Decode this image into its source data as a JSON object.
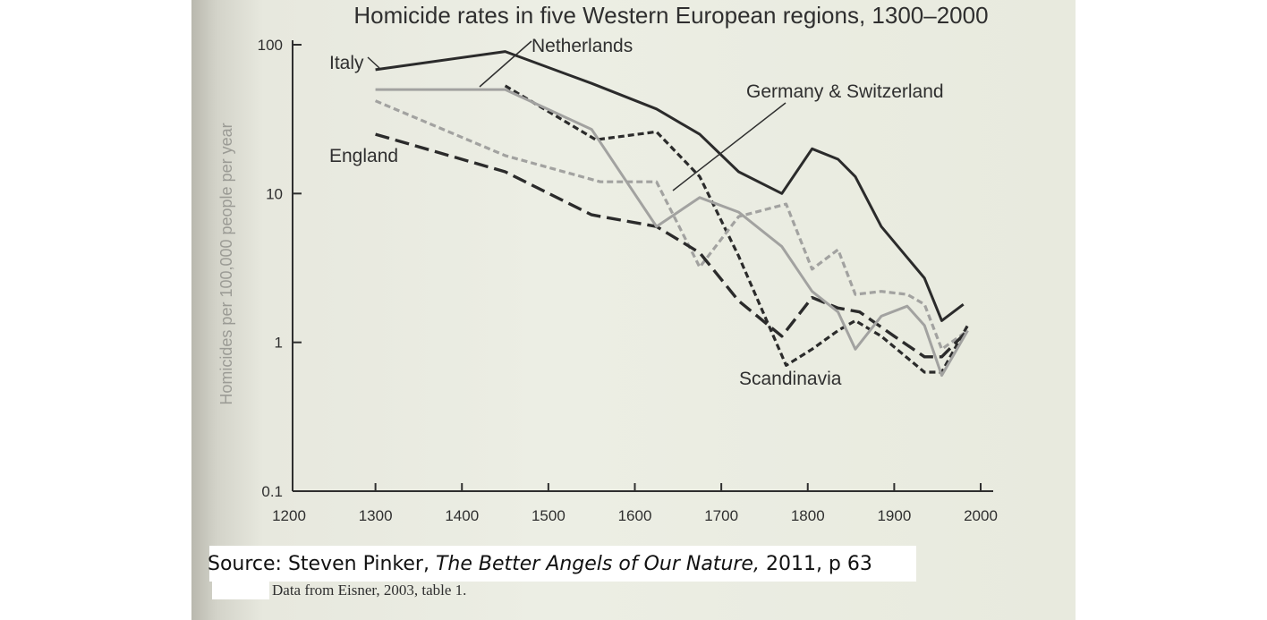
{
  "chart_data": {
    "type": "line",
    "title": "Homicide rates in five Western European regions, 1300–2000",
    "xlabel": "",
    "ylabel": "Homicides per 100,000 people per year",
    "yscale": "log",
    "xlim": [
      1200,
      2000
    ],
    "ylim": [
      0.1,
      100
    ],
    "xticks": [
      "1200",
      "1300",
      "1400",
      "1500",
      "1600",
      "1700",
      "1800",
      "1900",
      "2000"
    ],
    "yticks": [
      "0.1",
      "1",
      "10",
      "100"
    ],
    "grid": false,
    "series": [
      {
        "name": "Italy",
        "color": "#2b2b2b",
        "style": "solid",
        "x": [
          1300,
          1450,
          1550,
          1625,
          1675,
          1720,
          1770,
          1805,
          1835,
          1855,
          1885,
          1935,
          1955,
          1980
        ],
        "y": [
          68,
          90,
          55,
          37,
          25,
          14,
          10,
          20,
          17,
          13,
          6,
          2.7,
          1.4,
          1.8
        ]
      },
      {
        "name": "Netherlands",
        "color": "#2b2b2b",
        "style": "dashed",
        "x": [
          1450,
          1555,
          1625,
          1675,
          1720,
          1775,
          1805,
          1835,
          1855,
          1885,
          1935,
          1955,
          1985
        ],
        "y": [
          53,
          23,
          26,
          13,
          3.8,
          0.7,
          0.9,
          1.2,
          1.4,
          1.1,
          0.63,
          0.63,
          1.3
        ]
      },
      {
        "name": "Germany & Switzerland",
        "color": "#a2a2a0",
        "style": "dashed",
        "x": [
          1300,
          1450,
          1560,
          1625,
          1675,
          1720,
          1775,
          1805,
          1835,
          1855,
          1885,
          1915,
          1935,
          1955,
          1985
        ],
        "y": [
          42,
          18,
          12,
          12,
          3.2,
          7,
          8.5,
          3.1,
          4.2,
          2.1,
          2.2,
          2.1,
          1.8,
          0.9,
          1.2
        ]
      },
      {
        "name": "England",
        "color": "#2b2b2b",
        "style": "longdash",
        "x": [
          1300,
          1450,
          1550,
          1625,
          1675,
          1720,
          1770,
          1805,
          1835,
          1860,
          1900,
          1935,
          1955,
          1985
        ],
        "y": [
          25,
          14,
          7.2,
          6,
          4,
          1.9,
          1.1,
          2,
          1.7,
          1.6,
          1.1,
          0.8,
          0.8,
          1.2
        ]
      },
      {
        "name": "Scandinavia",
        "color": "#a2a2a0",
        "style": "solid",
        "x": [
          1300,
          1450,
          1550,
          1625,
          1675,
          1720,
          1770,
          1805,
          1835,
          1855,
          1885,
          1915,
          1935,
          1955,
          1985
        ],
        "y": [
          50,
          50,
          27,
          6,
          9.4,
          7.5,
          4.4,
          2.2,
          1.6,
          0.9,
          1.5,
          1.75,
          1.3,
          0.6,
          1.2
        ]
      }
    ]
  },
  "source": {
    "prefix": "Source: Steven Pinker, ",
    "book": "The Better Angels of Our Nature,",
    "suffix": " 2011, p 63"
  },
  "data_note": "Data from Eisner, 2003, table 1."
}
